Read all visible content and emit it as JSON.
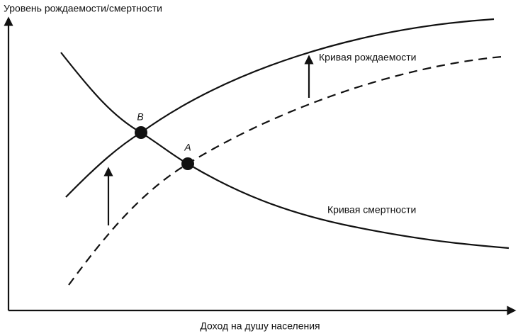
{
  "axes": {
    "y_label": "Уровень рождаемости/смертности",
    "x_label": "Доход на душу населения"
  },
  "curves": {
    "birth": "Кривая рождаемости",
    "death": "Кривая смертности"
  },
  "points": {
    "b": "B",
    "a": "A"
  }
}
